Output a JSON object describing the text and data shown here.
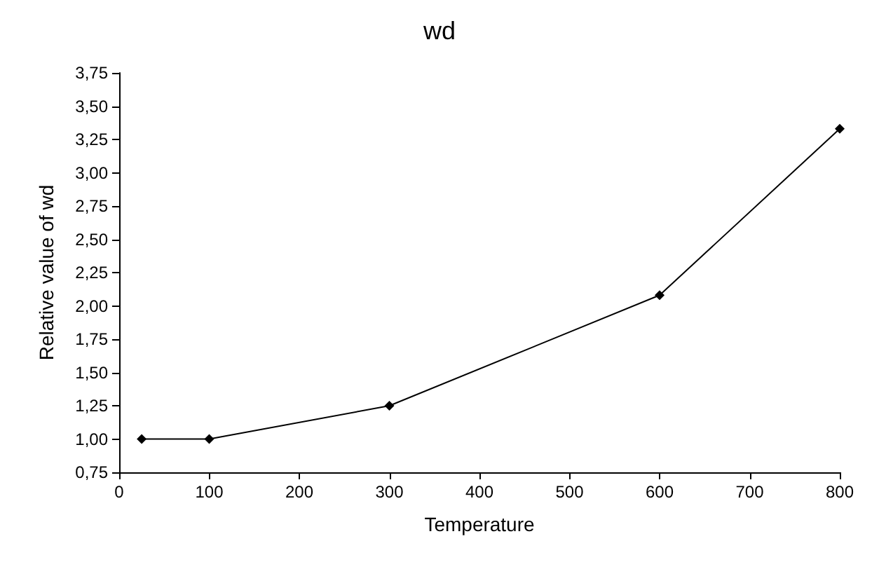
{
  "chart_data": {
    "type": "line",
    "title": "wd",
    "xlabel": "Temperature",
    "ylabel": "Relative value of wd",
    "x": [
      25,
      100,
      300,
      600,
      800
    ],
    "series": [
      {
        "color": "#000000",
        "values": [
          1.0,
          1.0,
          1.25,
          2.08,
          3.33
        ]
      }
    ],
    "xlim": [
      0,
      800
    ],
    "xticks": [
      0,
      100,
      200,
      300,
      400,
      500,
      600,
      700,
      800
    ],
    "ylim": [
      0.75,
      3.75
    ],
    "yticks": [
      {
        "value": 0.75,
        "label": "0,75"
      },
      {
        "value": 1,
        "label": "1,00"
      },
      {
        "value": 1.25,
        "label": "1,25"
      },
      {
        "value": 1.5,
        "label": "1,50"
      },
      {
        "value": 1.75,
        "label": "1,75"
      },
      {
        "value": 2,
        "label": "2,00"
      },
      {
        "value": 2.25,
        "label": "2,25"
      },
      {
        "value": 2.5,
        "label": "2,50"
      },
      {
        "value": 2.75,
        "label": "2,75"
      },
      {
        "value": 3,
        "label": "3,00"
      },
      {
        "value": 3.25,
        "label": "3,25"
      },
      {
        "value": 3.5,
        "label": "3,50"
      },
      {
        "value": 3.75,
        "label": "3,75"
      }
    ],
    "marker": "diamond",
    "line_style": "solid"
  }
}
